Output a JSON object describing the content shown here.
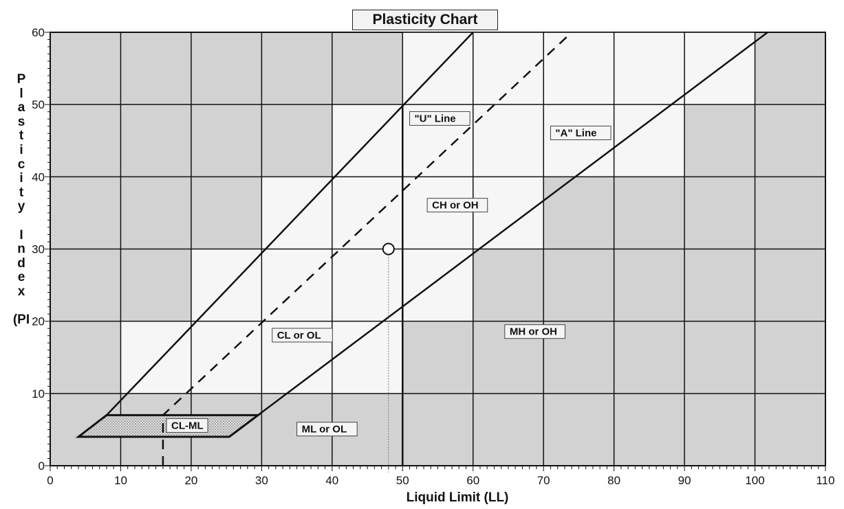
{
  "chart_data": {
    "type": "line",
    "title": "Plasticity Chart",
    "xlabel": "Liquid Limit (LL)",
    "ylabel_chars": [
      "P",
      "l",
      "a",
      "s",
      "t",
      "i",
      "c",
      "i",
      "t",
      "y",
      "",
      "I",
      "n",
      "d",
      "e",
      "x",
      "",
      "(PI"
    ],
    "xlim": [
      0,
      110
    ],
    "ylim": [
      0,
      60
    ],
    "x_ticks": [
      0,
      10,
      20,
      30,
      40,
      50,
      60,
      70,
      80,
      90,
      100,
      110
    ],
    "y_ticks": [
      0,
      10,
      20,
      30,
      40,
      50,
      60
    ],
    "grid": true,
    "series": [
      {
        "name": "\"U\" Line",
        "style": "solid",
        "points": [
          [
            8,
            7
          ],
          [
            60,
            60
          ]
        ]
      },
      {
        "name": "\"A\" Line",
        "style": "solid",
        "points": [
          [
            25.4,
            4
          ],
          [
            101.8,
            60
          ]
        ]
      },
      {
        "name": "",
        "style": "dashed",
        "points": [
          [
            16,
            0
          ],
          [
            16,
            7
          ],
          [
            74,
            60
          ]
        ]
      },
      {
        "name": "",
        "style": "solid",
        "points": [
          [
            50,
            0
          ],
          [
            50,
            50
          ]
        ]
      }
    ],
    "cl_ml_zone": {
      "label": "CL-ML",
      "points": [
        [
          4,
          4
        ],
        [
          8,
          7
        ],
        [
          29.5,
          7
        ],
        [
          25.4,
          4
        ]
      ]
    },
    "marker": {
      "x": 48,
      "y": 30
    },
    "region_labels": [
      {
        "text": "\"U\" Line",
        "x": 51,
        "y": 47.5
      },
      {
        "text": "\"A\" Line",
        "x": 71,
        "y": 45.5
      },
      {
        "text": "CH or OH",
        "x": 53.5,
        "y": 35.5
      },
      {
        "text": "CL or OL",
        "x": 31.5,
        "y": 17.5
      },
      {
        "text": "MH or OH",
        "x": 64.5,
        "y": 18
      },
      {
        "text": "ML or OL",
        "x": 35,
        "y": 4.5
      },
      {
        "text": "CL-ML",
        "x": 16.5,
        "y": 5
      }
    ]
  }
}
